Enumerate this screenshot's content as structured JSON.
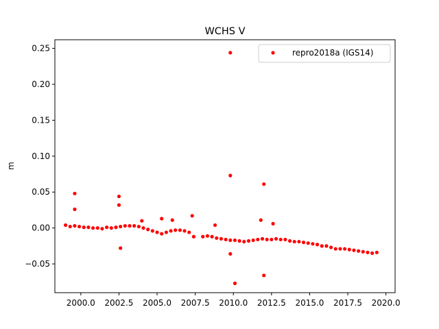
{
  "chart_data": {
    "type": "scatter",
    "title": "WCHS V",
    "xlabel": "",
    "ylabel": "m",
    "xlim": [
      1998.3,
      2020.6
    ],
    "ylim": [
      -0.09,
      0.262
    ],
    "xticks": [
      2000.0,
      2002.5,
      2005.0,
      2007.5,
      2010.0,
      2012.5,
      2015.0,
      2017.5,
      2020.0
    ],
    "xtick_labels": [
      "2000.0",
      "2002.5",
      "2005.0",
      "2007.5",
      "2010.0",
      "2012.5",
      "2015.0",
      "2017.5",
      "2020.0"
    ],
    "yticks": [
      -0.05,
      0.0,
      0.05,
      0.1,
      0.15,
      0.2,
      0.25
    ],
    "ytick_labels": [
      "−0.05",
      "0.00",
      "0.05",
      "0.10",
      "0.15",
      "0.20",
      "0.25"
    ],
    "grid": false,
    "legend_position": "top-right",
    "series": [
      {
        "name": "repro2018a (IGS14)",
        "color": "#ff0000",
        "marker": "circle",
        "x": [
          1999.0,
          1999.3,
          1999.6,
          1999.9,
          2000.2,
          2000.5,
          2000.8,
          2001.1,
          2001.4,
          2001.7,
          2002.0,
          2002.3,
          2002.6,
          2002.9,
          2003.2,
          2003.5,
          2003.8,
          2004.1,
          2004.4,
          2004.7,
          2005.0,
          2005.3,
          2005.6,
          2005.9,
          2006.2,
          2006.5,
          2006.8,
          2007.1,
          2007.4,
          2008.0,
          2008.3,
          2008.6,
          2008.9,
          2009.2,
          2009.5,
          2009.8,
          2010.1,
          2010.4,
          2010.7,
          2011.0,
          2011.3,
          2011.6,
          2011.9,
          2012.2,
          2012.5,
          2012.8,
          2013.1,
          2013.4,
          2013.7,
          2014.0,
          2014.3,
          2014.6,
          2014.9,
          2015.2,
          2015.5,
          2015.8,
          2016.1,
          2016.4,
          2016.7,
          2017.0,
          2017.3,
          2017.6,
          2017.9,
          2018.2,
          2018.5,
          2018.8,
          2019.1,
          2019.4,
          1999.6,
          1999.6,
          2002.5,
          2002.5,
          2006.0,
          2007.3,
          2008.8,
          2009.8,
          2009.8,
          2010.1,
          2011.8,
          2012.0,
          2012.0,
          2012.6,
          2009.8,
          2002.6,
          2004.0,
          2005.3
        ],
        "y": [
          0.004,
          0.002,
          0.003,
          0.002,
          0.001,
          0.001,
          0.0,
          0.0,
          -0.001,
          0.001,
          0.0,
          0.001,
          0.002,
          0.003,
          0.003,
          0.003,
          0.002,
          0.0,
          -0.002,
          -0.004,
          -0.006,
          -0.008,
          -0.006,
          -0.004,
          -0.003,
          -0.003,
          -0.004,
          -0.006,
          -0.012,
          -0.012,
          -0.011,
          -0.012,
          -0.014,
          -0.015,
          -0.016,
          -0.017,
          -0.017,
          -0.018,
          -0.019,
          -0.018,
          -0.017,
          -0.016,
          -0.015,
          -0.016,
          -0.016,
          -0.015,
          -0.016,
          -0.016,
          -0.018,
          -0.019,
          -0.019,
          -0.02,
          -0.021,
          -0.022,
          -0.023,
          -0.025,
          -0.025,
          -0.027,
          -0.029,
          -0.029,
          -0.029,
          -0.03,
          -0.031,
          -0.032,
          -0.033,
          -0.034,
          -0.035,
          -0.034,
          0.048,
          0.026,
          0.044,
          0.032,
          0.011,
          0.017,
          0.004,
          0.244,
          0.073,
          -0.077,
          0.011,
          0.061,
          -0.066,
          0.006,
          -0.036,
          -0.028,
          0.01,
          0.013
        ]
      }
    ]
  }
}
